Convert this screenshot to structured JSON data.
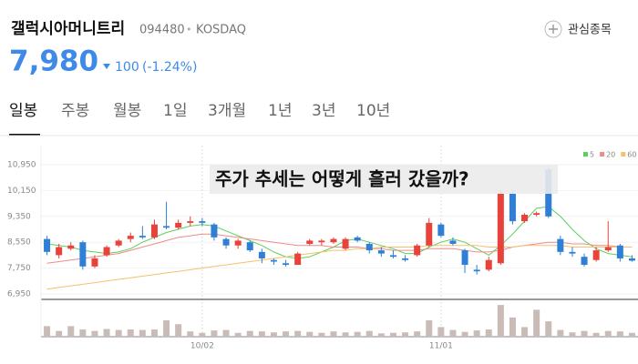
{
  "header": {
    "name": "갤럭시아머니트리",
    "code": "094480",
    "separator": "•",
    "market": "KOSDAQ",
    "watch": "관심종목"
  },
  "quote": {
    "price": "7,980",
    "change": "100",
    "change_pct": "(-1.24%)"
  },
  "tabs": [
    "일봉",
    "주봉",
    "월봉",
    "1일",
    "3개월",
    "1년",
    "3년",
    "10년"
  ],
  "chart_data": {
    "type": "candlestick",
    "annotation": "주가 추세는 어떻게 흘러 갔을까?",
    "categories": [
      null,
      null,
      null,
      null,
      null,
      null,
      null,
      null,
      null,
      null,
      null,
      null,
      null,
      "10/02",
      null,
      null,
      null,
      null,
      null,
      null,
      null,
      null,
      null,
      null,
      null,
      null,
      null,
      null,
      null,
      null,
      null,
      null,
      null,
      "11/01",
      null,
      null,
      null,
      null,
      null,
      null,
      null,
      null,
      null,
      null,
      null,
      null,
      null,
      null,
      null,
      null
    ],
    "open": [
      8650,
      8150,
      8350,
      8550,
      7800,
      8150,
      8450,
      8650,
      8750,
      8700,
      9050,
      9000,
      9150,
      9200,
      9100,
      8650,
      8450,
      8550,
      8250,
      8000,
      7900,
      7850,
      8500,
      8550,
      8550,
      8350,
      8700,
      8500,
      8300,
      8150,
      8050,
      8150,
      8450,
      9100,
      8600,
      8300,
      7700,
      7700,
      7900,
      10050,
      9200,
      9400,
      10800,
      8650,
      8250,
      8100,
      8000,
      8300,
      8450,
      8050
    ],
    "high": [
      8750,
      8500,
      8550,
      8600,
      8150,
      8450,
      8650,
      8850,
      9050,
      9250,
      9800,
      9250,
      9350,
      9300,
      9150,
      8700,
      8650,
      8600,
      8350,
      8050,
      8000,
      8250,
      8650,
      8650,
      8700,
      8700,
      8750,
      8550,
      8400,
      8300,
      8150,
      8500,
      9300,
      9150,
      8700,
      8350,
      7850,
      8100,
      10150,
      10150,
      9450,
      9500,
      10900,
      8750,
      8400,
      8200,
      8400,
      9200,
      8500,
      8150
    ],
    "low": [
      8150,
      8050,
      8300,
      7700,
      7750,
      8100,
      8400,
      8550,
      8650,
      8650,
      8950,
      8950,
      9050,
      9050,
      8600,
      8350,
      8350,
      8250,
      7900,
      7850,
      7800,
      7850,
      8450,
      8450,
      8500,
      8300,
      8550,
      8200,
      8100,
      8050,
      7950,
      8100,
      8400,
      8700,
      8450,
      7600,
      7550,
      7650,
      7850,
      9100,
      9150,
      9350,
      9300,
      8150,
      8100,
      7800,
      7950,
      8250,
      7950,
      7950
    ],
    "close": [
      8250,
      8400,
      8450,
      7800,
      8050,
      8400,
      8600,
      8750,
      8700,
      9100,
      9000,
      9150,
      9200,
      9150,
      8700,
      8450,
      8600,
      8300,
      8050,
      7950,
      7850,
      8200,
      8600,
      8600,
      8650,
      8650,
      8600,
      8300,
      8200,
      8100,
      8000,
      8450,
      9150,
      8750,
      8500,
      7850,
      7650,
      8000,
      10050,
      9200,
      9400,
      9450,
      9350,
      8250,
      8200,
      7850,
      8300,
      8400,
      8050,
      7980
    ],
    "up_color": "#e8423a",
    "down_color": "#2f7fd6",
    "ylim": [
      6810,
      11540
    ],
    "yticks": [
      {
        "value": 10950,
        "label": "10,950"
      },
      {
        "value": 10150,
        "label": "10,150"
      },
      {
        "value": 9350,
        "label": "9,350"
      },
      {
        "value": 8550,
        "label": "8,550"
      },
      {
        "value": 7750,
        "label": "7,750"
      },
      {
        "value": 6950,
        "label": "6,950"
      }
    ],
    "grid": true,
    "series": [
      {
        "name": "5",
        "color": "#5ccf5c",
        "values": [
          8500,
          8450,
          8400,
          8300,
          8250,
          8200,
          8250,
          8350,
          8550,
          8700,
          8850,
          8950,
          9050,
          9100,
          9050,
          8900,
          8750,
          8600,
          8450,
          8250,
          8100,
          8050,
          8100,
          8250,
          8400,
          8600,
          8650,
          8550,
          8450,
          8350,
          8200,
          8200,
          8400,
          8550,
          8650,
          8550,
          8350,
          8150,
          8450,
          8800,
          9200,
          9600,
          9650,
          9350,
          8950,
          8600,
          8350,
          8200,
          8150,
          8100
        ]
      },
      {
        "name": "20",
        "color": "#ef8b86",
        "values": [
          7900,
          7950,
          8000,
          8050,
          8100,
          8150,
          8200,
          8300,
          8400,
          8500,
          8600,
          8700,
          8750,
          8800,
          8800,
          8750,
          8700,
          8650,
          8600,
          8550,
          8500,
          8450,
          8450,
          8450,
          8400,
          8400,
          8400,
          8350,
          8350,
          8300,
          8300,
          8300,
          8350,
          8350,
          8350,
          8300,
          8250,
          8250,
          8300,
          8400,
          8450,
          8500,
          8550,
          8550,
          8500,
          8500,
          8450,
          8450,
          8400,
          8400
        ]
      },
      {
        "name": "60",
        "color": "#f5c16c",
        "values": [
          7100,
          7150,
          7200,
          7250,
          7300,
          7350,
          7400,
          7450,
          7500,
          7550,
          7600,
          7650,
          7700,
          7750,
          7800,
          7850,
          7900,
          7950,
          8000,
          8050,
          8100,
          8150,
          8200,
          8250,
          8300,
          8300,
          8350,
          8350,
          8400,
          8400,
          8400,
          8400,
          8450,
          8450,
          8450,
          8450,
          8450,
          8400,
          8400,
          8400,
          8450,
          8450,
          8450,
          8450,
          8400,
          8400,
          8400,
          8400,
          8400,
          8400
        ]
      }
    ],
    "volume": {
      "color": "#c9bcb7",
      "ylim": [
        0,
        350
      ],
      "values": [
        110,
        60,
        110,
        75,
        60,
        80,
        70,
        75,
        70,
        75,
        170,
        130,
        55,
        40,
        65,
        70,
        40,
        60,
        55,
        45,
        55,
        60,
        50,
        40,
        55,
        45,
        50,
        60,
        35,
        40,
        45,
        55,
        170,
        100,
        70,
        50,
        65,
        75,
        330,
        200,
        100,
        280,
        160,
        70,
        45,
        60,
        40,
        60,
        55,
        40
      ]
    }
  }
}
